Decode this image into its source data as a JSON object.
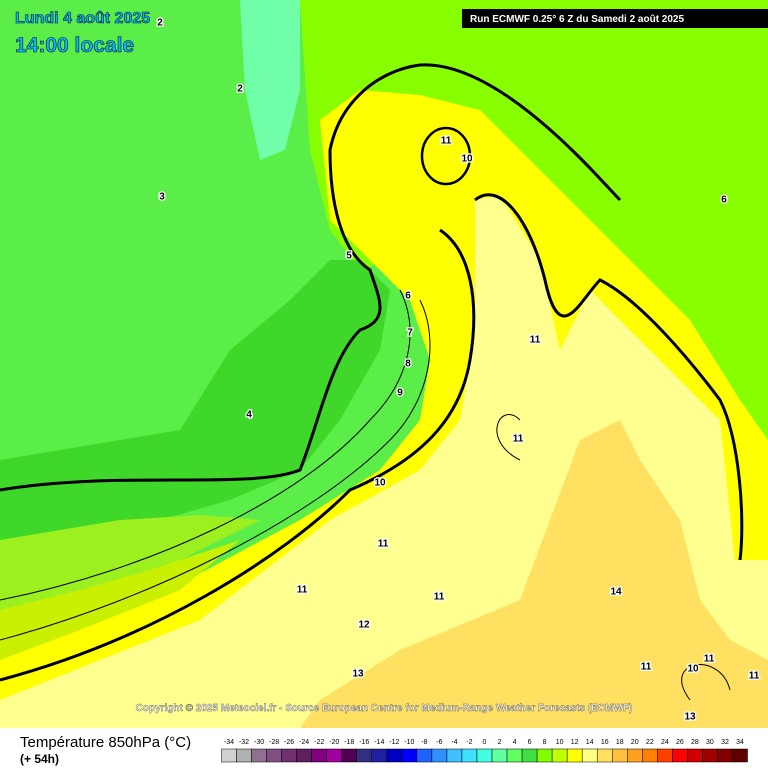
{
  "header": {
    "date": "Lundi 4 août 2025",
    "time": "14:00 locale",
    "run": "Run ECMWF 0.25° 6 Z du Samedi 2 août 2025"
  },
  "map": {
    "contour_labels": [
      2,
      2,
      3,
      4,
      5,
      6,
      7,
      8,
      9,
      10,
      11,
      10,
      6,
      11,
      11,
      11,
      11,
      11,
      14,
      12,
      13,
      11,
      10,
      11,
      11,
      13
    ],
    "copyright": "Copyright © 2025 Meteociel.fr - Source European Centre for Medium-Range Weather Forecasts (ECMWF)"
  },
  "legend": {
    "title": "Température 850hPa (°C)",
    "lead": "(+ 54h)",
    "ticks": [
      -34,
      -32,
      -30,
      -28,
      -26,
      -24,
      -22,
      -20,
      -18,
      -16,
      -14,
      -12,
      -10,
      -8,
      -6,
      -4,
      -2,
      0,
      2,
      4,
      6,
      8,
      10,
      12,
      14,
      16,
      18,
      20,
      22,
      24,
      26,
      28,
      30,
      32,
      34
    ],
    "colors": [
      "#d0d0d0",
      "#b0b0b0",
      "#907090",
      "#805080",
      "#703070",
      "#602060",
      "#800080",
      "#a000a0",
      "#500050",
      "#303080",
      "#2020a0",
      "#0000c0",
      "#0000ff",
      "#2060ff",
      "#3090ff",
      "#40c0ff",
      "#40e0ff",
      "#40ffe0",
      "#60ffa0",
      "#60ff60",
      "#40e040",
      "#80ff00",
      "#c0ff00",
      "#ffff00",
      "#ffff80",
      "#ffe060",
      "#ffc040",
      "#ffa020",
      "#ff8000",
      "#ff4000",
      "#ff0000",
      "#d00000",
      "#a00000",
      "#800000",
      "#600000"
    ]
  }
}
